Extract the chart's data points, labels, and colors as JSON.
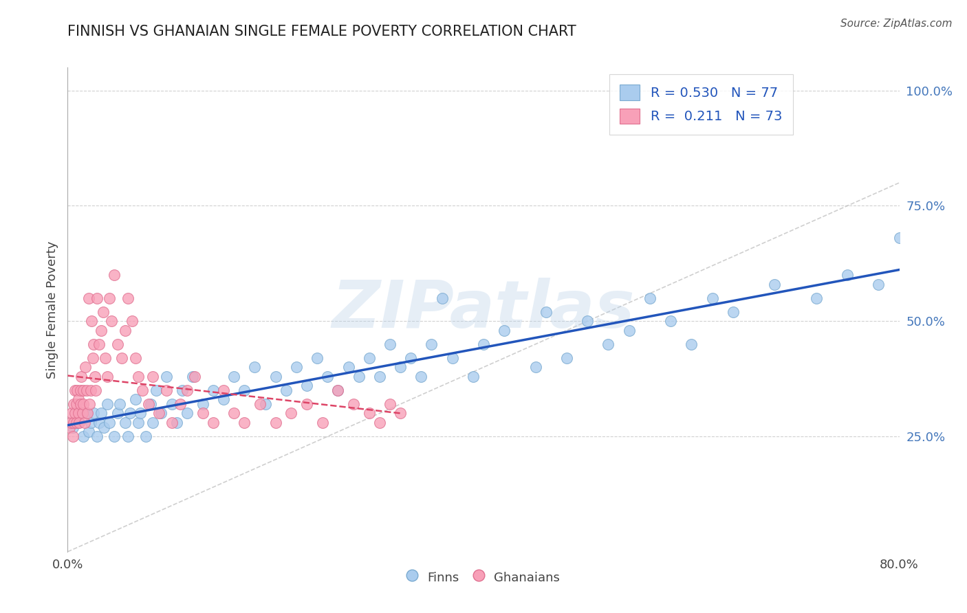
{
  "title": "FINNISH VS GHANAIAN SINGLE FEMALE POVERTY CORRELATION CHART",
  "source": "Source: ZipAtlas.com",
  "ylabel": "Single Female Poverty",
  "xlim": [
    0.0,
    0.8
  ],
  "ylim": [
    0.0,
    1.05
  ],
  "ytick_positions": [
    0.0,
    0.25,
    0.5,
    0.75,
    1.0
  ],
  "yticklabels": [
    "",
    "25.0%",
    "50.0%",
    "75.0%",
    "100.0%"
  ],
  "grid_color": "#d0d0d0",
  "background_color": "#ffffff",
  "finns_color": "#aaccee",
  "finns_edge": "#7aaad0",
  "ghanaians_color": "#f8a0b8",
  "ghanaians_edge": "#e07090",
  "trendline_finns_color": "#2255bb",
  "trendline_ghana_color": "#dd4466",
  "reference_line_color": "#bbbbbb",
  "watermark": "ZIPatlas",
  "legend_R_finns": "R = 0.530",
  "legend_N_finns": "N = 77",
  "legend_R_ghana": "R =  0.211",
  "legend_N_ghana": "N = 73",
  "finns_x": [
    0.005,
    0.01,
    0.015,
    0.018,
    0.02,
    0.022,
    0.025,
    0.028,
    0.03,
    0.032,
    0.035,
    0.038,
    0.04,
    0.045,
    0.048,
    0.05,
    0.055,
    0.058,
    0.06,
    0.065,
    0.068,
    0.07,
    0.075,
    0.08,
    0.082,
    0.085,
    0.09,
    0.095,
    0.1,
    0.105,
    0.11,
    0.115,
    0.12,
    0.13,
    0.14,
    0.15,
    0.16,
    0.17,
    0.18,
    0.19,
    0.2,
    0.21,
    0.22,
    0.23,
    0.24,
    0.25,
    0.26,
    0.27,
    0.28,
    0.29,
    0.3,
    0.31,
    0.32,
    0.33,
    0.34,
    0.35,
    0.36,
    0.37,
    0.39,
    0.4,
    0.42,
    0.45,
    0.46,
    0.48,
    0.5,
    0.52,
    0.54,
    0.56,
    0.58,
    0.6,
    0.62,
    0.64,
    0.68,
    0.72,
    0.75,
    0.78,
    0.8
  ],
  "finns_y": [
    0.27,
    0.28,
    0.25,
    0.3,
    0.26,
    0.28,
    0.3,
    0.25,
    0.28,
    0.3,
    0.27,
    0.32,
    0.28,
    0.25,
    0.3,
    0.32,
    0.28,
    0.25,
    0.3,
    0.33,
    0.28,
    0.3,
    0.25,
    0.32,
    0.28,
    0.35,
    0.3,
    0.38,
    0.32,
    0.28,
    0.35,
    0.3,
    0.38,
    0.32,
    0.35,
    0.33,
    0.38,
    0.35,
    0.4,
    0.32,
    0.38,
    0.35,
    0.4,
    0.36,
    0.42,
    0.38,
    0.35,
    0.4,
    0.38,
    0.42,
    0.38,
    0.45,
    0.4,
    0.42,
    0.38,
    0.45,
    0.55,
    0.42,
    0.38,
    0.45,
    0.48,
    0.4,
    0.52,
    0.42,
    0.5,
    0.45,
    0.48,
    0.55,
    0.5,
    0.45,
    0.55,
    0.52,
    0.58,
    0.55,
    0.6,
    0.58,
    0.68
  ],
  "ghana_x": [
    0.002,
    0.003,
    0.004,
    0.005,
    0.006,
    0.006,
    0.007,
    0.007,
    0.008,
    0.008,
    0.009,
    0.01,
    0.01,
    0.011,
    0.012,
    0.012,
    0.013,
    0.014,
    0.015,
    0.015,
    0.016,
    0.017,
    0.018,
    0.019,
    0.02,
    0.021,
    0.022,
    0.023,
    0.024,
    0.025,
    0.026,
    0.027,
    0.028,
    0.03,
    0.032,
    0.034,
    0.036,
    0.038,
    0.04,
    0.042,
    0.045,
    0.048,
    0.052,
    0.055,
    0.058,
    0.062,
    0.065,
    0.068,
    0.072,
    0.078,
    0.082,
    0.088,
    0.095,
    0.1,
    0.108,
    0.115,
    0.122,
    0.13,
    0.14,
    0.15,
    0.16,
    0.17,
    0.185,
    0.2,
    0.215,
    0.23,
    0.245,
    0.26,
    0.275,
    0.29,
    0.3,
    0.31,
    0.32
  ],
  "ghana_y": [
    0.27,
    0.28,
    0.3,
    0.25,
    0.32,
    0.28,
    0.35,
    0.3,
    0.32,
    0.28,
    0.35,
    0.3,
    0.33,
    0.28,
    0.35,
    0.32,
    0.38,
    0.3,
    0.35,
    0.32,
    0.28,
    0.4,
    0.35,
    0.3,
    0.55,
    0.32,
    0.35,
    0.5,
    0.42,
    0.45,
    0.38,
    0.35,
    0.55,
    0.45,
    0.48,
    0.52,
    0.42,
    0.38,
    0.55,
    0.5,
    0.6,
    0.45,
    0.42,
    0.48,
    0.55,
    0.5,
    0.42,
    0.38,
    0.35,
    0.32,
    0.38,
    0.3,
    0.35,
    0.28,
    0.32,
    0.35,
    0.38,
    0.3,
    0.28,
    0.35,
    0.3,
    0.28,
    0.32,
    0.28,
    0.3,
    0.32,
    0.28,
    0.35,
    0.32,
    0.3,
    0.28,
    0.32,
    0.3
  ]
}
